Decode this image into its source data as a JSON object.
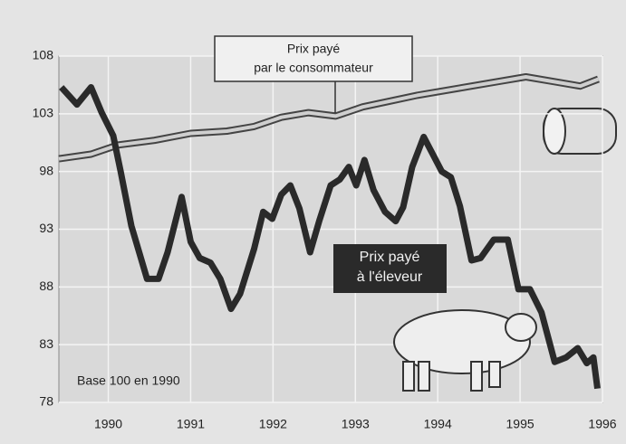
{
  "chart_data": {
    "type": "line",
    "consumer_label": [
      "Prix payé",
      "par le consommateur"
    ],
    "producer_label": [
      "Prix payé",
      "à l'éleveur"
    ],
    "note": "Base 100 en 1990",
    "xlim": [
      1989.4,
      1996.0
    ],
    "xticks": [
      1990,
      1991,
      1992,
      1993,
      1994,
      1995,
      1996
    ],
    "ylim": [
      78,
      108
    ],
    "yticks": [
      78,
      83,
      88,
      93,
      98,
      103,
      108
    ],
    "grid": true,
    "series": [
      {
        "color": "#cfcfcf",
        "x": [
          1989.4,
          1989.79,
          1990.12,
          1990.56,
          1991.0,
          1991.44,
          1991.77,
          1992.1,
          1992.43,
          1992.76,
          1993.09,
          1993.42,
          1993.75,
          1994.08,
          1994.41,
          1994.74,
          1995.07,
          1995.4,
          1995.73,
          1995.95
        ],
        "values": [
          99.1,
          99.5,
          100.3,
          100.7,
          101.3,
          101.5,
          101.9,
          102.7,
          103.1,
          102.8,
          103.6,
          104.1,
          104.6,
          105,
          105.4,
          105.8,
          106.2,
          105.8,
          105.4,
          106
        ]
      },
      {
        "color": "#2a2a2a",
        "x": [
          1989.43,
          1989.62,
          1989.79,
          1989.92,
          1990.06,
          1990.15,
          1990.28,
          1990.47,
          1990.61,
          1990.72,
          1990.89,
          1991.0,
          1991.11,
          1991.24,
          1991.36,
          1991.49,
          1991.6,
          1991.77,
          1991.88,
          1991.99,
          1992.1,
          1992.21,
          1992.32,
          1992.45,
          1992.56,
          1992.7,
          1992.81,
          1992.92,
          1993.01,
          1993.11,
          1993.22,
          1993.36,
          1993.49,
          1993.58,
          1993.69,
          1993.83,
          1993.94,
          1994.05,
          1994.16,
          1994.27,
          1994.41,
          1994.52,
          1994.68,
          1994.85,
          1994.98,
          1995.12,
          1995.26,
          1995.42,
          1995.56,
          1995.7,
          1995.81,
          1995.89,
          1995.94
        ],
        "values": [
          105.3,
          103.8,
          105.3,
          103.1,
          101.1,
          98,
          93.3,
          88.7,
          88.7,
          91,
          95.8,
          91.9,
          90.5,
          90.1,
          88.7,
          86.1,
          87.4,
          91.3,
          94.5,
          93.9,
          96,
          96.8,
          94.8,
          91,
          93.7,
          96.8,
          97.3,
          98.4,
          96.8,
          99,
          96.4,
          94.5,
          93.7,
          94.9,
          98.4,
          101,
          99.5,
          98,
          97.5,
          95,
          90.3,
          90.5,
          92.1,
          92.1,
          87.8,
          87.8,
          85.8,
          81.5,
          81.9,
          82.7,
          81.4,
          81.9,
          79.2
        ]
      }
    ]
  }
}
